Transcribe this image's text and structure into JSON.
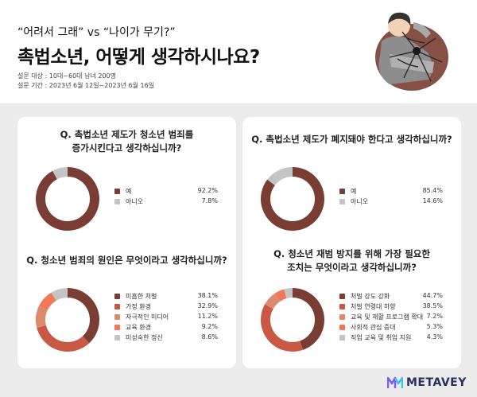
{
  "header": {
    "subtitle": "“어려서 그래” vs “나이가 무기?”",
    "title": "촉법소년, 어떻게 생각하시나요?",
    "meta_target": "설문 대상 : 10대~60대 남녀 200명",
    "meta_period": "설문 기간 : 2023년 6월 12일~2023년 6월 16일"
  },
  "brand": {
    "name": "METAVEY"
  },
  "chart_data": [
    {
      "type": "pie",
      "title": "Q. 촉법소년 제도가 청소년 범죄를 증가시킨다고 생각하십니까?",
      "title_lines": [
        "Q. 촉법소년 제도가 청소년 범죄를",
        "증가시킨다고 생각하십니까?"
      ],
      "categories": [
        "예",
        "아니오"
      ],
      "values": [
        92.2,
        7.8
      ],
      "value_labels": [
        "92.2%",
        "7.8%"
      ],
      "colors": [
        "#7a3d33",
        "#c4c4c4"
      ]
    },
    {
      "type": "pie",
      "title": "Q. 촉법소년 제도가 폐지돼야 한다고 생각하십니까?",
      "title_lines": [
        "Q. 촉법소년 제도가 폐지돼야 한다고 생각하십니까?"
      ],
      "categories": [
        "예",
        "아니오"
      ],
      "values": [
        85.4,
        14.6
      ],
      "value_labels": [
        "85.4%",
        "14.6%"
      ],
      "colors": [
        "#7a3d33",
        "#c4c4c4"
      ]
    },
    {
      "type": "pie",
      "title": "Q. 청소년 범죄의 원인은 무엇이라고 생각하십니까?",
      "title_lines": [
        "Q. 청소년 범죄의 원인은 무엇이라고 생각하십니까?"
      ],
      "categories": [
        "미흡한 처벌",
        "가정 환경",
        "자극적인 미디어",
        "교육 환경",
        "미성숙한 정신"
      ],
      "values": [
        38.1,
        32.9,
        11.2,
        9.2,
        8.6
      ],
      "value_labels": [
        "38.1%",
        "32.9%",
        "11.2%",
        "9.2%",
        "8.6%"
      ],
      "colors": [
        "#7a3d33",
        "#c85a45",
        "#db8a6e",
        "#f07858",
        "#c4c4c4"
      ]
    },
    {
      "type": "pie",
      "title": "Q. 청소년 재범 방지를 위해 가장 필요한 조치는 무엇이라고 생각하십니까?",
      "title_lines": [
        "Q. 청소년 재범 방지를 위해 가장 필요한",
        "조치는 무엇이라고 생각하십니까?"
      ],
      "categories": [
        "처벌 강도 강화",
        "처벌 연령대 하향",
        "교육 및 재활 프로그램 확대",
        "사회적 관심 증대",
        "직업 교육 및 취업 지원"
      ],
      "values": [
        44.7,
        38.5,
        7.2,
        5.3,
        4.3
      ],
      "value_labels": [
        "44.7%",
        "38.5%",
        "7.2%",
        "5.3%",
        "4.3%"
      ],
      "colors": [
        "#7a3d33",
        "#c85a45",
        "#db8a6e",
        "#f07858",
        "#c4c4c4"
      ]
    }
  ]
}
